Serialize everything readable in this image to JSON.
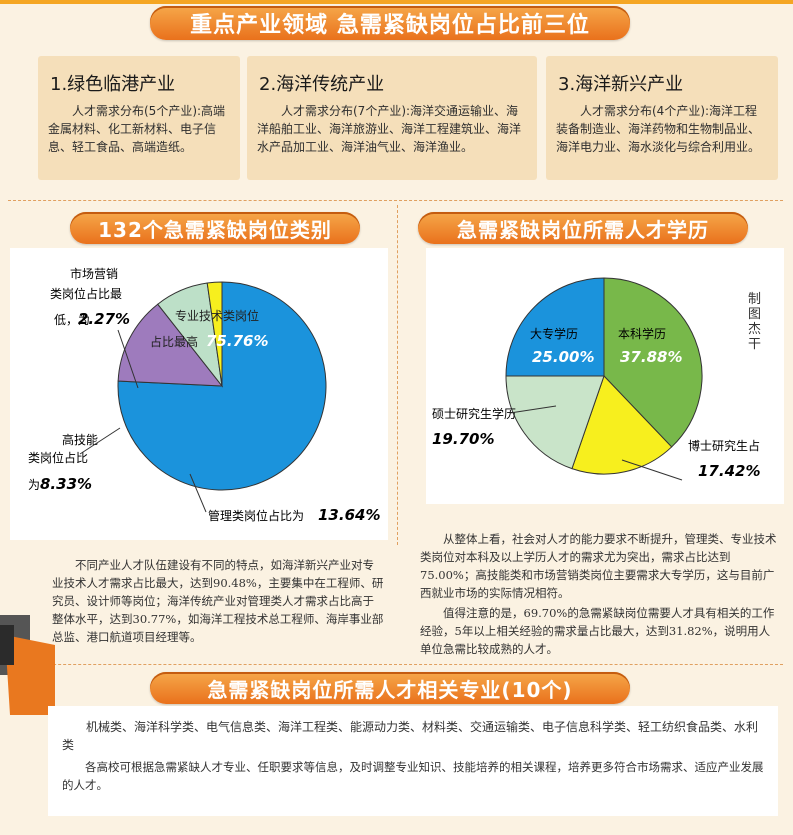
{
  "header": {
    "title": "重点产业领域  急需紧缺岗位占比前三位"
  },
  "cards": [
    {
      "title": "1.绿色临港产业",
      "body": "人才需求分布(5个产业):高端金属材料、化工新材料、电子信息、轻工食品、高端造纸。"
    },
    {
      "title": "2.海洋传统产业",
      "body": "人才需求分布(7个产业):海洋交通运输业、海洋船舶工业、海洋旅游业、海洋工程建筑业、海洋水产品加工业、海洋油气业、海洋渔业。"
    },
    {
      "title": "3.海洋新兴产业",
      "body": "人才需求分布(4个产业):海洋工程装备制造业、海洋药物和生物制品业、海洋电力业、海水淡化与综合利用业。"
    }
  ],
  "left_section": {
    "banner": "132个急需紧缺岗位类别",
    "labels": {
      "marketing_1": "市场营销",
      "marketing_2": "类岗位占比最",
      "marketing_3": "低，为",
      "marketing_value": "2.27%",
      "professional_1": "专业技术类岗位",
      "professional_2": "占比最高",
      "professional_value": "75.76%",
      "skill_1": "高技能",
      "skill_2": "类岗位占比",
      "skill_3": "为",
      "skill_value": "8.33%",
      "management_1": "管理类岗位占比为",
      "management_value": "13.64%"
    },
    "paragraph": "不同产业人才队伍建设有不同的特点，如海洋新兴产业对专业技术人才需求占比最大，达到90.48%，主要集中在工程师、研究员、设计师等岗位；海洋传统产业对管理类人才需求占比高于整体水平，达到30.77%，如海洋工程技术总工程师、海岸事业部总监、港口航道项目经理等。"
  },
  "right_section": {
    "banner": "急需紧缺岗位所需人才学历",
    "labels": {
      "bachelor": "本科学历",
      "bachelor_value": "37.88%",
      "college": "大专学历",
      "college_value": "25.00%",
      "master": "硕士研究生学历",
      "master_value": "19.70%",
      "phd": "博士研究生占",
      "phd_value": "17.42%"
    },
    "paragraph_1": "从整体上看，社会对人才的能力要求不断提升，管理类、专业技术类岗位对本科及以上学历人才的需求尤为突出，需求占比达到75.00%；高技能类和市场营销类岗位主要需求大专学历，这与目前广西就业市场的实际情况相符。",
    "paragraph_2": "值得注意的是，69.70%的急需紧缺岗位需要人才具有相关的工作经验，5年以上相关经验的需求量占比最大，达到31.82%，说明用人单位急需比较成熟的人才。",
    "credit": "制图杰干"
  },
  "bottom_section": {
    "banner": "急需紧缺岗位所需人才相关专业(10个)",
    "majors": "机械类、海洋科学类、电气信息类、海洋工程类、能源动力类、材料类、交通运输类、电子信息科学类、轻工纺织食品类、水利类",
    "note": "各高校可根据急需紧缺人才专业、任职要求等信息，及时调整专业知识、技能培养的相关课程，培养更多符合市场需求、适应产业发展的人才。"
  },
  "chart_data": [
    {
      "type": "pie",
      "categories": [
        "专业技术类",
        "管理类",
        "高技能类",
        "市场营销类"
      ],
      "values": [
        75.76,
        13.64,
        8.33,
        2.27
      ],
      "colors": [
        "#1b93dc",
        "#9e7bbd",
        "#bde0c8",
        "#f7ef1e"
      ]
    },
    {
      "type": "pie",
      "categories": [
        "本科学历",
        "博士研究生",
        "硕士研究生学历",
        "大专学历"
      ],
      "values": [
        37.88,
        17.42,
        19.7,
        25.0
      ],
      "colors": [
        "#78b84a",
        "#f7ef1e",
        "#c9e4c9",
        "#1b93dc"
      ]
    }
  ]
}
